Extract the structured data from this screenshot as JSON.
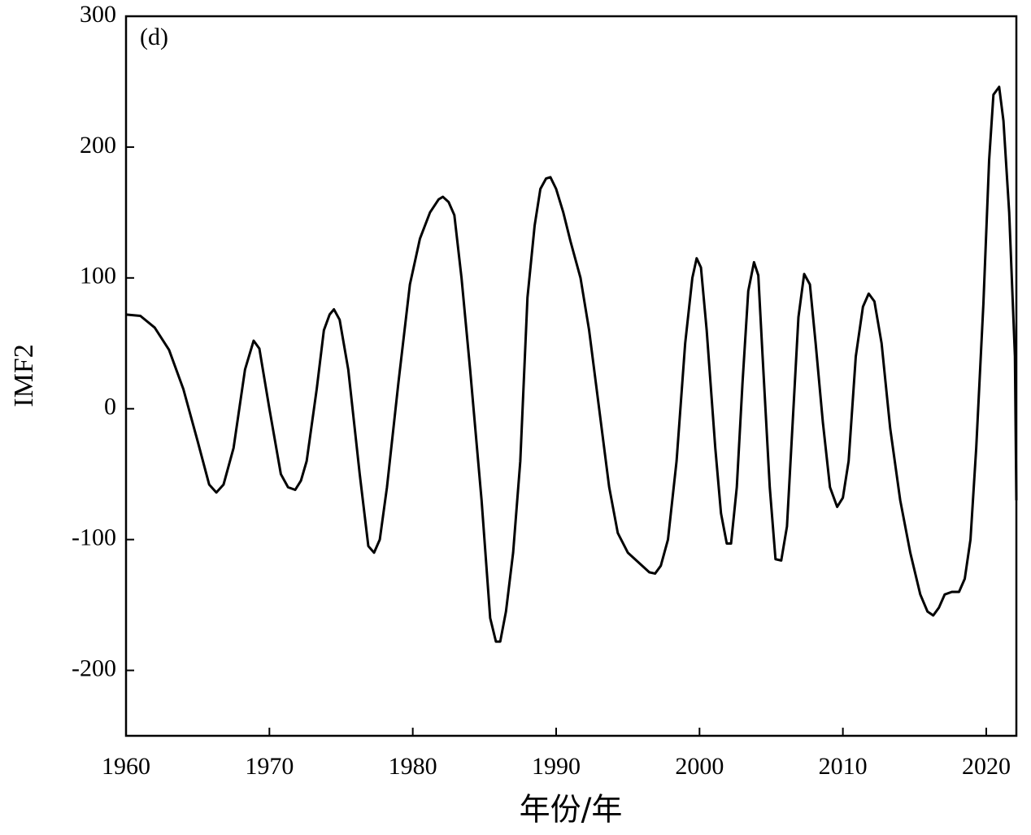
{
  "chart_data": {
    "type": "line",
    "annotation": "(d)",
    "xlabel": "年份/年",
    "ylabel": "IMF2",
    "x": [
      1960,
      1961,
      1962,
      1963,
      1964,
      1965,
      1965.8,
      1966.3,
      1966.8,
      1967.5,
      1968.3,
      1968.9,
      1969.3,
      1970,
      1970.8,
      1971.3,
      1971.8,
      1972.2,
      1972.6,
      1973.3,
      1973.8,
      1974.2,
      1974.5,
      1974.9,
      1975.5,
      1976.3,
      1976.9,
      1977.3,
      1977.7,
      1978.2,
      1979,
      1979.8,
      1980.5,
      1981.2,
      1981.8,
      1982.1,
      1982.5,
      1982.9,
      1983.4,
      1984,
      1984.8,
      1985.4,
      1985.8,
      1986.1,
      1986.5,
      1987,
      1987.5,
      1988,
      1988.5,
      1988.9,
      1989.3,
      1989.6,
      1990,
      1990.5,
      1991,
      1991.7,
      1992.3,
      1993,
      1993.7,
      1994.3,
      1995,
      1995.8,
      1996.5,
      1996.9,
      1997.3,
      1997.8,
      1998.4,
      1999,
      1999.5,
      1999.8,
      2000.1,
      2000.5,
      2001.1,
      2001.5,
      2001.9,
      2002.2,
      2002.6,
      2003,
      2003.4,
      2003.8,
      2004.1,
      2004.4,
      2004.9,
      2005.3,
      2005.7,
      2006.1,
      2006.5,
      2006.9,
      2007.3,
      2007.7,
      2008.1,
      2008.6,
      2009.1,
      2009.6,
      2010,
      2010.4,
      2010.9,
      2011.4,
      2011.8,
      2012.2,
      2012.7,
      2013.3,
      2014,
      2014.7,
      2015.4,
      2015.9,
      2016.3,
      2016.7,
      2017.1,
      2017.6,
      2018.1,
      2018.5,
      2018.9,
      2019.3,
      2019.8,
      2020.2,
      2020.5,
      2020.9,
      2021.2,
      2021.6,
      2022,
      2022.1
    ],
    "series": [
      {
        "name": "IMF2",
        "color": "#000000",
        "values": [
          72,
          71,
          62,
          45,
          15,
          -25,
          -58,
          -64,
          -58,
          -30,
          30,
          52,
          46,
          0,
          -50,
          -60,
          -62,
          -55,
          -40,
          15,
          60,
          72,
          76,
          68,
          30,
          -50,
          -105,
          -110,
          -100,
          -60,
          20,
          95,
          130,
          150,
          160,
          162,
          158,
          148,
          100,
          30,
          -70,
          -160,
          -178,
          -178,
          -155,
          -110,
          -40,
          85,
          140,
          168,
          176,
          177,
          168,
          150,
          128,
          100,
          60,
          0,
          -60,
          -95,
          -110,
          -118,
          -125,
          -126,
          -120,
          -100,
          -40,
          50,
          100,
          115,
          108,
          60,
          -30,
          -80,
          -103,
          -103,
          -60,
          20,
          90,
          112,
          102,
          40,
          -60,
          -115,
          -116,
          -90,
          -10,
          70,
          103,
          95,
          50,
          -10,
          -60,
          -75,
          -68,
          -40,
          40,
          78,
          88,
          82,
          50,
          -15,
          -70,
          -110,
          -142,
          -155,
          -158,
          -152,
          -142,
          -140,
          -140,
          -130,
          -100,
          -30,
          80,
          190,
          240,
          246,
          220,
          150,
          40,
          -70
        ]
      }
    ],
    "xlim": [
      1960,
      2022.1
    ],
    "ylim": [
      -250,
      300
    ],
    "xticks": [
      1960,
      1970,
      1980,
      1990,
      2000,
      2010,
      2020
    ],
    "yticks": [
      -200,
      -100,
      0,
      100,
      200,
      300
    ]
  }
}
